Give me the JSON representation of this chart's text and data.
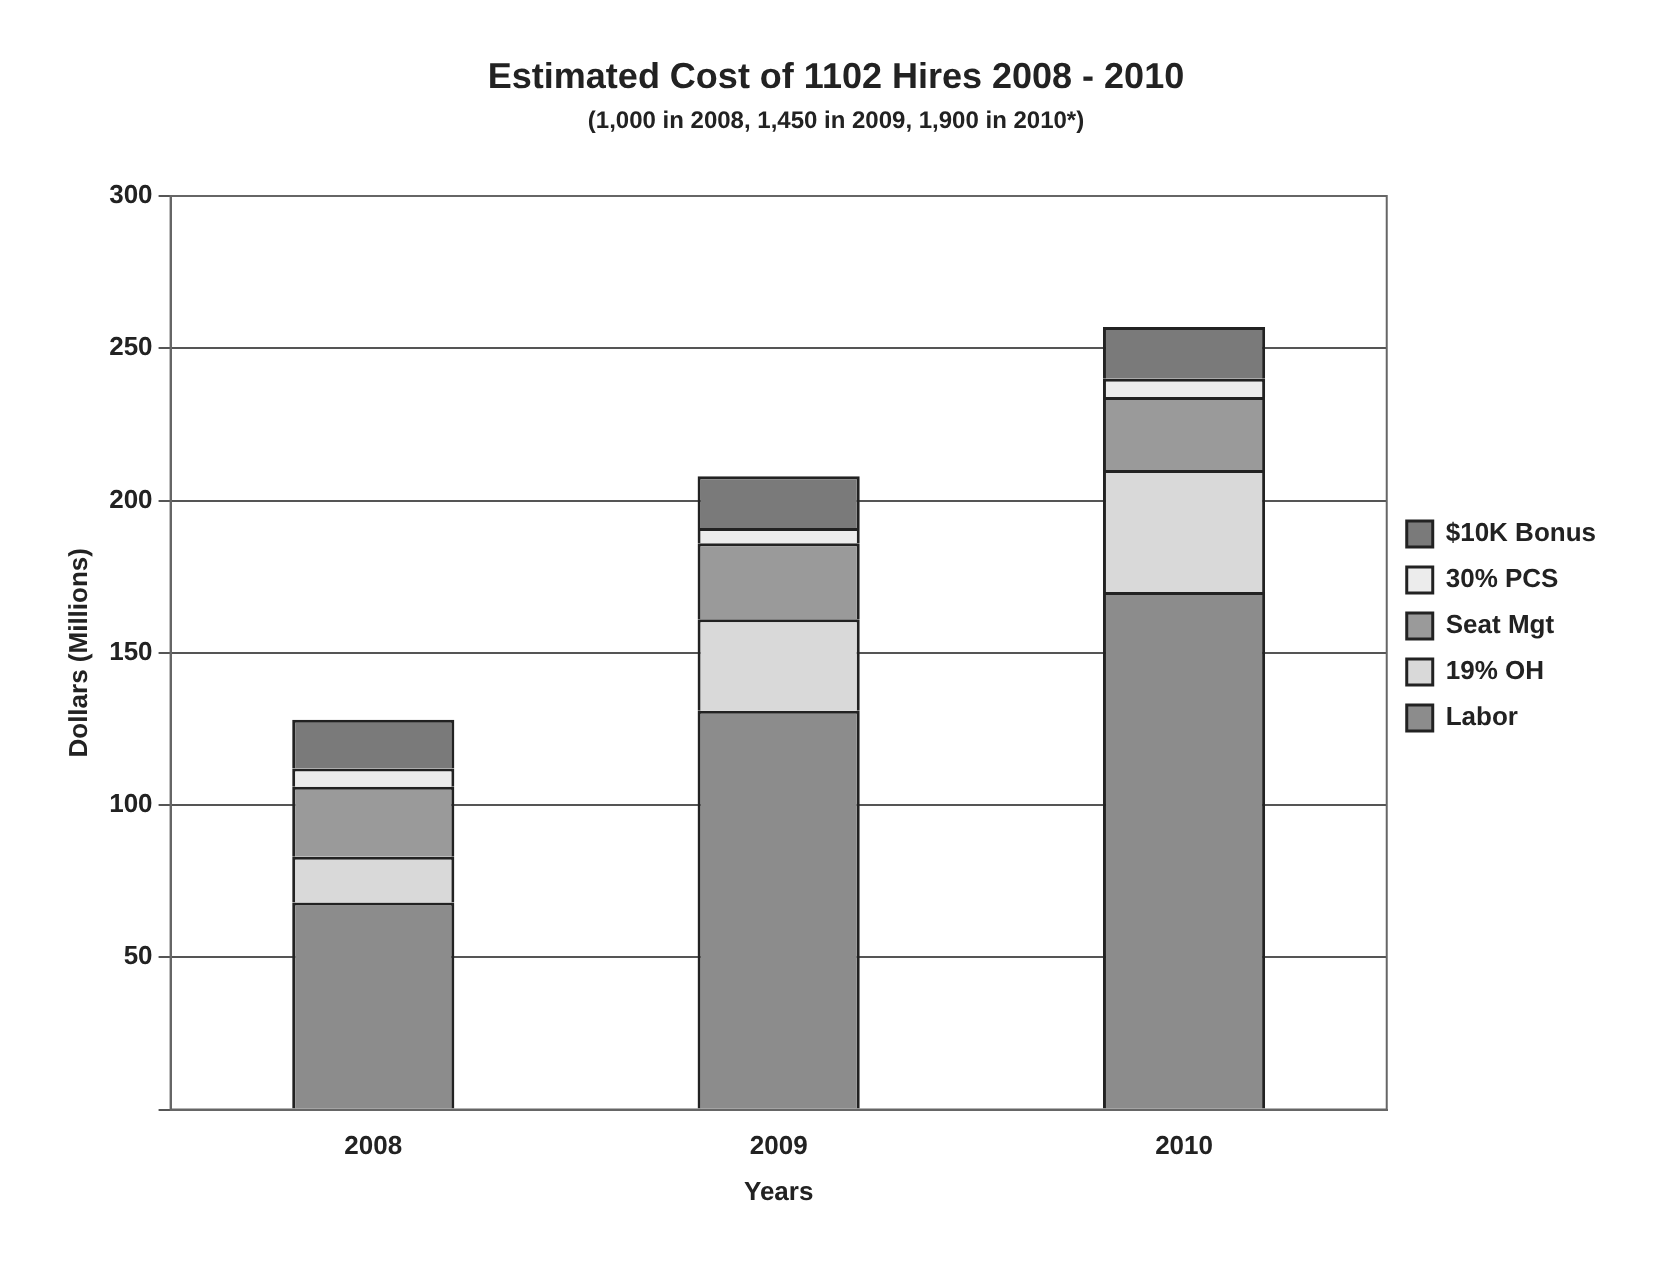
{
  "chart_data": {
    "type": "bar",
    "title": "Estimated Cost of 1102 Hires 2008 - 2010",
    "subtitle": "(1,000 in 2008, 1,450 in 2009, 1,900 in 2010*)",
    "xlabel": "Years",
    "ylabel": "Dollars (Millions)",
    "categories": [
      "2008",
      "2009",
      "2010"
    ],
    "stacked": true,
    "series": [
      {
        "name": "Labor",
        "color": "#8c8c8c",
        "values": [
          68,
          131,
          170
        ]
      },
      {
        "name": "19% OH",
        "color": "#d9d9d9",
        "values": [
          15,
          30,
          40
        ]
      },
      {
        "name": "Seat Mgt",
        "color": "#9a9a9a",
        "values": [
          23,
          25,
          24
        ]
      },
      {
        "name": "30% PCS",
        "color": "#ececec",
        "values": [
          6,
          5,
          6
        ]
      },
      {
        "name": "$10K Bonus",
        "color": "#7a7a7a",
        "values": [
          16,
          17,
          17
        ]
      }
    ],
    "ylim": [
      0,
      300
    ],
    "yticks": [
      {
        "value": 0,
        "label": null
      },
      50,
      100,
      150,
      200,
      250,
      300
    ],
    "grid": "y",
    "legend": "right"
  }
}
